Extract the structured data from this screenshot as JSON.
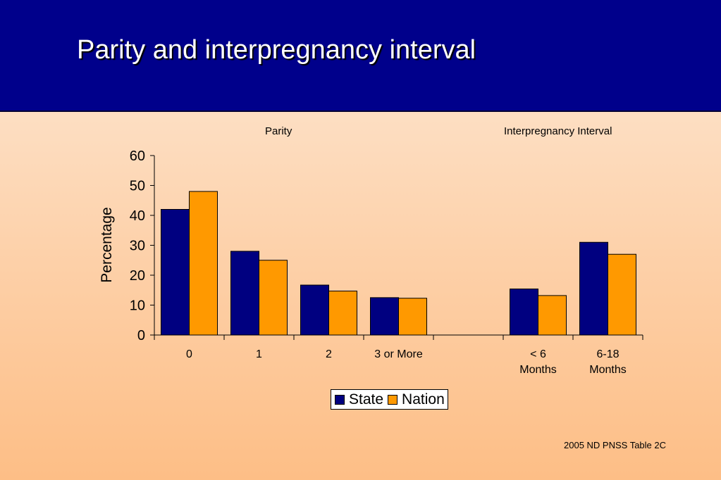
{
  "slide": {
    "title": "Parity and interpregnancy interval",
    "source": "2005 ND PNSS Table 2C"
  },
  "chart_data": {
    "type": "bar",
    "group_labels": [
      "Parity",
      "Interpregnancy Interval"
    ],
    "ylabel": "Percentage",
    "xlabel": "",
    "ylim": [
      0,
      60
    ],
    "yticks": [
      0,
      10,
      20,
      30,
      40,
      50,
      60
    ],
    "categories": [
      "0",
      "1",
      "2",
      "3 or More",
      "",
      "< 6\nMonths",
      "6-18\nMonths"
    ],
    "series": [
      {
        "name": "State",
        "color": "#000080",
        "values": [
          42,
          28,
          16.7,
          12.5,
          null,
          15.4,
          31
        ]
      },
      {
        "name": "Nation",
        "color": "#ff9900",
        "values": [
          48,
          25,
          14.7,
          12.3,
          null,
          13.2,
          27
        ]
      }
    ],
    "grid": false,
    "legend_position": "bottom"
  }
}
